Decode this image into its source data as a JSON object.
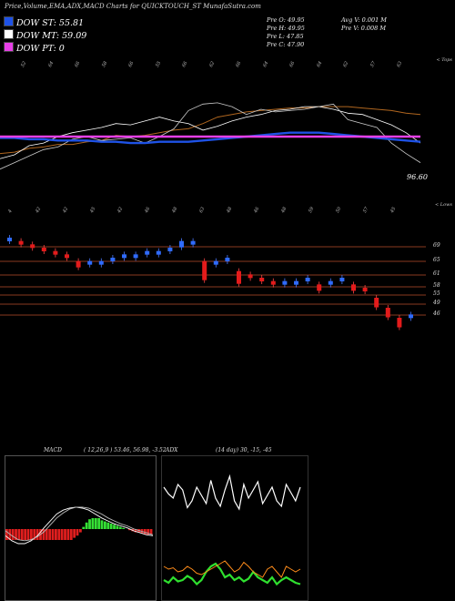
{
  "header": {
    "title": "Price,Volume,EMA,ADX,MACD Charts for QUICKTOUCH_ST MunafaSutra.com"
  },
  "legend": [
    {
      "label": "DOW ST: 55.81",
      "color": "#1e52e6"
    },
    {
      "label": "DOW MT: 59.09",
      "color": "#ffffff"
    },
    {
      "label": "DOW PT: 0",
      "color": "#e63fe6"
    }
  ],
  "stats": {
    "col1": [
      "Pre O: 49.95",
      "Pre H: 49.95",
      "Pre L: 47.85",
      "Pre C: 47.90"
    ],
    "col2": [
      "Avg V: 0.001 M",
      "Pre V: 0.008 M"
    ]
  },
  "notes": {
    "top_right": "< Tops",
    "lower_right": "< Lows",
    "last_price": "96.60"
  },
  "top_ticks": [
    "52",
    "64",
    "66",
    "58",
    "66",
    "55",
    "66",
    "62",
    "66",
    "64",
    "66",
    "64",
    "62",
    "57",
    "63"
  ],
  "lower_ticks": [
    "4",
    "42",
    "42",
    "45",
    "42",
    "46",
    "48",
    "63",
    "48",
    "46",
    "48",
    "59",
    "50",
    "57",
    "45"
  ],
  "price_levels": [
    "69",
    "65",
    "61",
    "58",
    "55",
    "49",
    "46"
  ],
  "chart_data": [
    {
      "type": "line",
      "title": "",
      "series": [
        {
          "values": [
            22,
            23,
            26,
            27,
            29,
            29,
            31,
            32,
            36,
            35,
            36,
            38,
            40,
            41,
            45,
            50,
            52,
            54,
            55,
            56,
            57,
            57,
            58,
            58,
            58,
            57,
            56,
            55,
            53,
            52
          ]
        },
        {
          "values": [
            18,
            21,
            28,
            30,
            35,
            38,
            40,
            42,
            45,
            44,
            47,
            50,
            47,
            45,
            40,
            43,
            47,
            50,
            52,
            55,
            56,
            58,
            58,
            56,
            53,
            52,
            48,
            44,
            38,
            30
          ]
        },
        {
          "values": [
            10,
            15,
            20,
            25,
            27,
            33,
            35,
            32,
            33,
            34,
            30,
            35,
            41,
            55,
            60,
            61,
            58,
            52,
            56,
            54,
            55,
            56,
            58,
            60,
            48,
            45,
            42,
            30,
            22,
            15
          ]
        },
        {
          "values": [
            34,
            34,
            33,
            33,
            32,
            32,
            32,
            31,
            31,
            30,
            30,
            31,
            31,
            31,
            32,
            33,
            34,
            35,
            36,
            37,
            38,
            38,
            38,
            37,
            36,
            35,
            34,
            33,
            32,
            31
          ]
        }
      ],
      "dow_pt_level": 35
    },
    {
      "type": "bar",
      "title": "",
      "series": [
        {
          "values": [
            71,
            70,
            69,
            68,
            67,
            66,
            64,
            64,
            64,
            65,
            66,
            66,
            67,
            67,
            68,
            70,
            70,
            64,
            64,
            65,
            61,
            60,
            59,
            58,
            58,
            58,
            59,
            57,
            58,
            59,
            57,
            56,
            53,
            50,
            47,
            48
          ]
        }
      ]
    },
    {
      "type": "line",
      "title": "MACD",
      "params": "( 12,26,9 ) 53.46, 56.98, -3.52",
      "series": [
        {
          "values": [
            -1,
            -1.5,
            -1.8,
            -1.8,
            -1.5,
            -1,
            -0.2,
            0.5,
            1.2,
            1.6,
            1.8,
            1.9,
            1.8,
            1.6,
            1.2,
            0.8,
            0.5,
            0.2,
            0,
            -0.2,
            -0.5,
            -0.7,
            -0.9,
            -1
          ]
        },
        {
          "values": [
            -0.5,
            -1,
            -1.4,
            -1.5,
            -1.4,
            -1.1,
            -0.6,
            0.1,
            0.8,
            1.3,
            1.7,
            1.9,
            1.9,
            1.8,
            1.5,
            1.2,
            0.8,
            0.5,
            0.2,
            0,
            -0.3,
            -0.5,
            -0.7,
            -0.9
          ]
        }
      ],
      "histogram": [
        -1,
        -1,
        -1,
        -1,
        -1,
        -1,
        -1,
        -1,
        -1,
        -1,
        -1,
        -1,
        -1,
        -1,
        -1,
        -1,
        -1,
        -1,
        -1,
        -1,
        -1,
        -1,
        -0.8,
        -0.6,
        -0.3,
        0.2,
        0.6,
        0.9,
        1,
        1,
        1,
        0.8,
        0.7,
        0.6,
        0.5,
        0.4,
        0.3,
        0.2,
        0.1,
        0,
        -0.1,
        -0.2,
        -0.3,
        -0.3,
        -0.4,
        -0.5,
        -0.5,
        -0.5
      ]
    },
    {
      "type": "line",
      "title": "ADX",
      "params": "(14 day) 30, -15, -45",
      "series": [
        {
          "values": [
            80,
            75,
            72,
            82,
            78,
            65,
            70,
            80,
            74,
            68,
            85,
            72,
            66,
            78,
            88,
            70,
            64,
            82,
            72,
            78,
            84,
            68,
            74,
            80,
            70,
            66,
            82,
            76,
            70,
            80
          ]
        },
        {
          "values": [
            12,
            10,
            14,
            11,
            12,
            15,
            13,
            9,
            12,
            18,
            22,
            24,
            20,
            14,
            16,
            12,
            14,
            11,
            13,
            18,
            14,
            12,
            10,
            14,
            9,
            12,
            14,
            12,
            10,
            9
          ]
        },
        {
          "values": [
            22,
            20,
            21,
            18,
            19,
            22,
            20,
            17,
            16,
            18,
            20,
            22,
            24,
            26,
            22,
            18,
            20,
            25,
            22,
            18,
            16,
            14,
            20,
            22,
            18,
            14,
            22,
            20,
            18,
            20
          ]
        }
      ]
    }
  ]
}
